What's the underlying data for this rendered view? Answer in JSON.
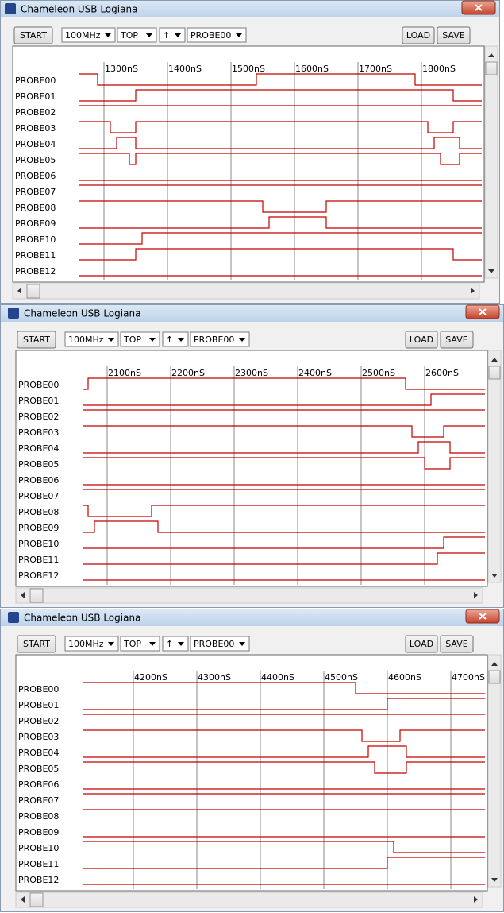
{
  "windows": [
    {
      "title": "Chameleon USB Logiana",
      "toolbar": {
        "start": "START",
        "clock": "100MHz",
        "trigger": "TOP",
        "edge": "↑",
        "probe": "PROBE00",
        "load": "LOAD",
        "save": "SAVE"
      },
      "ticks": [
        {
          "value": 1300,
          "label": "1300nS"
        },
        {
          "value": 1400,
          "label": "1400nS"
        },
        {
          "value": 1500,
          "label": "1500nS"
        },
        {
          "value": 1600,
          "label": "1600nS"
        },
        {
          "value": 1700,
          "label": "1700nS"
        },
        {
          "value": 1800,
          "label": "1800nS"
        }
      ],
      "probes": [
        {
          "name": "PROBE00",
          "initial": 1,
          "edges": [
            1290,
            1540,
            1790
          ]
        },
        {
          "name": "PROBE01",
          "initial": 0,
          "edges": [
            1350,
            1850
          ]
        },
        {
          "name": "PROBE02",
          "initial": 1,
          "edges": []
        },
        {
          "name": "PROBE03",
          "initial": 1,
          "edges": [
            1310,
            1350,
            1810,
            1850
          ]
        },
        {
          "name": "PROBE04",
          "initial": 0,
          "edges": [
            1320,
            1350,
            1820,
            1860
          ]
        },
        {
          "name": "PROBE05",
          "initial": 1,
          "edges": [
            1340,
            1350,
            1830,
            1860
          ]
        },
        {
          "name": "PROBE06",
          "initial": 0,
          "edges": []
        },
        {
          "name": "PROBE07",
          "initial": 1,
          "edges": []
        },
        {
          "name": "PROBE08",
          "initial": 1,
          "edges": [
            1550,
            1650
          ]
        },
        {
          "name": "PROBE09",
          "initial": 0,
          "edges": [
            1560,
            1650
          ]
        },
        {
          "name": "PROBE10",
          "initial": 0,
          "edges": [
            1360
          ]
        },
        {
          "name": "PROBE11",
          "initial": 0,
          "edges": [
            1350,
            1850
          ]
        },
        {
          "name": "PROBE12",
          "initial": 0,
          "edges": []
        }
      ]
    },
    {
      "title": "Chameleon USB Logiana",
      "toolbar": {
        "start": "START",
        "clock": "100MHz",
        "trigger": "TOP",
        "edge": "↑",
        "probe": "PROBE00",
        "load": "LOAD",
        "save": "SAVE"
      },
      "ticks": [
        {
          "value": 2100,
          "label": "2100nS"
        },
        {
          "value": 2200,
          "label": "2200nS"
        },
        {
          "value": 2300,
          "label": "2300nS"
        },
        {
          "value": 2400,
          "label": "2400nS"
        },
        {
          "value": 2500,
          "label": "2500nS"
        },
        {
          "value": 2600,
          "label": "2600nS"
        }
      ],
      "probes": [
        {
          "name": "PROBE00",
          "initial": 0,
          "edges": [
            2070,
            2570
          ]
        },
        {
          "name": "PROBE01",
          "initial": 0,
          "edges": [
            2610
          ]
        },
        {
          "name": "PROBE02",
          "initial": 1,
          "edges": []
        },
        {
          "name": "PROBE03",
          "initial": 1,
          "edges": [
            2580,
            2630
          ]
        },
        {
          "name": "PROBE04",
          "initial": 0,
          "edges": [
            2590,
            2640
          ]
        },
        {
          "name": "PROBE05",
          "initial": 1,
          "edges": [
            2600,
            2640
          ]
        },
        {
          "name": "PROBE06",
          "initial": 0,
          "edges": []
        },
        {
          "name": "PROBE07",
          "initial": 1,
          "edges": []
        },
        {
          "name": "PROBE08",
          "initial": 1,
          "edges": [
            2070,
            2170
          ]
        },
        {
          "name": "PROBE09",
          "initial": 0,
          "edges": [
            2080,
            2180
          ]
        },
        {
          "name": "PROBE10",
          "initial": 0,
          "edges": [
            2630
          ]
        },
        {
          "name": "PROBE11",
          "initial": 0,
          "edges": [
            2620
          ]
        },
        {
          "name": "PROBE12",
          "initial": 0,
          "edges": []
        }
      ]
    },
    {
      "title": "Chameleon USB Logiana",
      "toolbar": {
        "start": "START",
        "clock": "100MHz",
        "trigger": "TOP",
        "edge": "↑",
        "probe": "PROBE00",
        "load": "LOAD",
        "save": "SAVE"
      },
      "ticks": [
        {
          "value": 4200,
          "label": "4200nS"
        },
        {
          "value": 4300,
          "label": "4300nS"
        },
        {
          "value": 4400,
          "label": "4400nS"
        },
        {
          "value": 4500,
          "label": "4500nS"
        },
        {
          "value": 4600,
          "label": "4600nS"
        },
        {
          "value": 4700,
          "label": "4700nS"
        }
      ],
      "probes": [
        {
          "name": "PROBE00",
          "initial": 1,
          "edges": [
            4550
          ]
        },
        {
          "name": "PROBE01",
          "initial": 0,
          "edges": [
            4600
          ]
        },
        {
          "name": "PROBE02",
          "initial": 1,
          "edges": []
        },
        {
          "name": "PROBE03",
          "initial": 1,
          "edges": [
            4560,
            4620
          ]
        },
        {
          "name": "PROBE04",
          "initial": 0,
          "edges": [
            4570,
            4630
          ]
        },
        {
          "name": "PROBE05",
          "initial": 1,
          "edges": [
            4580,
            4630
          ]
        },
        {
          "name": "PROBE06",
          "initial": 0,
          "edges": []
        },
        {
          "name": "PROBE07",
          "initial": 1,
          "edges": []
        },
        {
          "name": "PROBE08",
          "initial": 1,
          "edges": []
        },
        {
          "name": "PROBE09",
          "initial": 0,
          "edges": []
        },
        {
          "name": "PROBE10",
          "initial": 1,
          "edges": [
            4610
          ]
        },
        {
          "name": "PROBE11",
          "initial": 0,
          "edges": [
            4600
          ]
        },
        {
          "name": "PROBE12",
          "initial": 0,
          "edges": []
        }
      ]
    }
  ]
}
